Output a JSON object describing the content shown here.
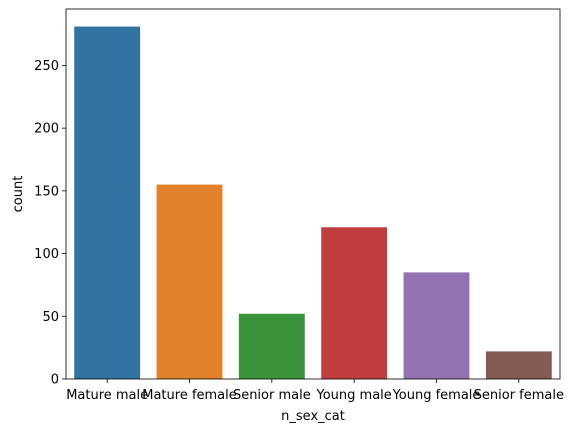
{
  "chart_data": {
    "type": "bar",
    "title": "",
    "xlabel": "n_sex_cat",
    "ylabel": "count",
    "categories": [
      "Mature male",
      "Mature female",
      "Senior male",
      "Young male",
      "Young female",
      "Senior female"
    ],
    "values": [
      281,
      155,
      52,
      121,
      85,
      22
    ],
    "colors": [
      "#3274a1",
      "#e1812c",
      "#3a923a",
      "#c03d3e",
      "#9372b2",
      "#845b53"
    ],
    "ylim": [
      0,
      295
    ],
    "yticks": [
      0,
      50,
      100,
      150,
      200,
      250
    ],
    "grid": false,
    "legend": "none"
  }
}
